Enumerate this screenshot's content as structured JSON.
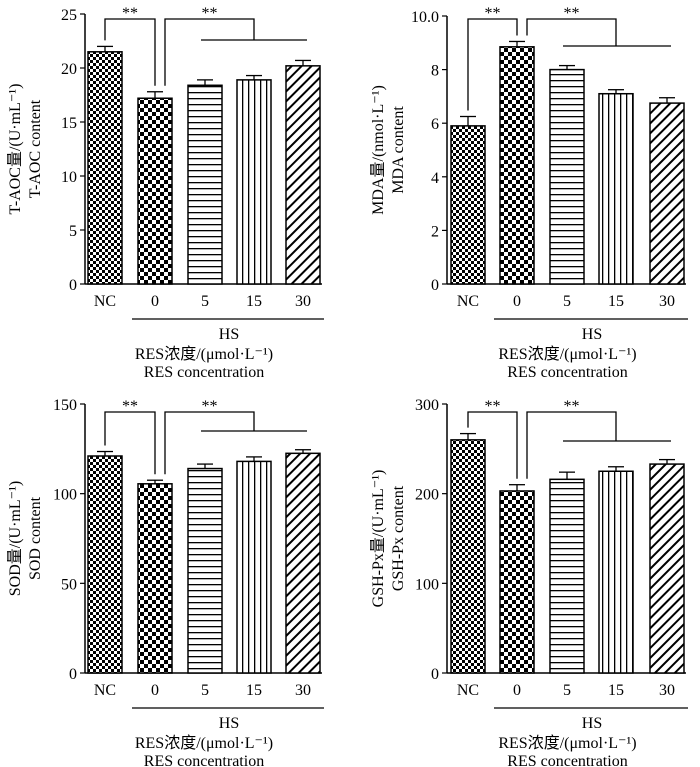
{
  "chart_data": [
    {
      "type": "bar",
      "panel": "top-left",
      "ylabel_line1": "T-AOC量/(U·mL⁻¹)",
      "ylabel_line2": "T-AOC content",
      "categories": [
        "NC",
        "0",
        "5",
        "15",
        "30"
      ],
      "values": [
        21.5,
        17.2,
        18.4,
        18.9,
        20.2
      ],
      "errors": [
        0.5,
        0.6,
        0.5,
        0.4,
        0.5
      ],
      "patterns": [
        "checker-small",
        "checker-large",
        "hlines",
        "vlines",
        "diag"
      ],
      "ylim": [
        0,
        25
      ],
      "yticks": [
        0,
        5,
        10,
        15,
        20,
        25
      ],
      "group_label": "HS",
      "xlabel_line1": "RES浓度/(μmol·L⁻¹)",
      "xlabel_line2": "RES concentration",
      "sig_left": "**",
      "sig_right": "**"
    },
    {
      "type": "bar",
      "panel": "top-right",
      "ylabel_line1": "MDA量/(nmol·L⁻¹)",
      "ylabel_line2": "MDA content",
      "categories": [
        "NC",
        "0",
        "5",
        "15",
        "30"
      ],
      "values": [
        5.9,
        8.85,
        8.0,
        7.1,
        6.75
      ],
      "errors": [
        0.35,
        0.2,
        0.15,
        0.15,
        0.2
      ],
      "patterns": [
        "checker-small",
        "checker-large",
        "hlines",
        "vlines",
        "diag"
      ],
      "ylim": [
        0,
        10
      ],
      "yticks": [
        0,
        2,
        4,
        6,
        8,
        10
      ],
      "ytick_labels": [
        "0",
        "2",
        "4",
        "6",
        "8",
        "10.0"
      ],
      "group_label": "HS",
      "xlabel_line1": "RES浓度/(μmol·L⁻¹)",
      "xlabel_line2": "RES concentration",
      "sig_left": "**",
      "sig_right": "**"
    },
    {
      "type": "bar",
      "panel": "bottom-left",
      "ylabel_line1": "SOD量/(U·mL⁻¹)",
      "ylabel_line2": "SOD content",
      "categories": [
        "NC",
        "0",
        "5",
        "15",
        "30"
      ],
      "values": [
        121,
        105.5,
        114,
        118,
        122.5
      ],
      "errors": [
        2.5,
        2,
        2.5,
        2.5,
        2
      ],
      "patterns": [
        "checker-small",
        "checker-large",
        "hlines",
        "vlines",
        "diag"
      ],
      "ylim": [
        0,
        150
      ],
      "yticks": [
        0,
        50,
        100,
        150
      ],
      "group_label": "HS",
      "xlabel_line1": "RES浓度/(μmol·L⁻¹)",
      "xlabel_line2": "RES concentration",
      "sig_left": "**",
      "sig_right": "**"
    },
    {
      "type": "bar",
      "panel": "bottom-right",
      "ylabel_line1": "GSH-Px量/(U·mL⁻¹)",
      "ylabel_line2": "GSH-Px content",
      "categories": [
        "NC",
        "0",
        "5",
        "15",
        "30"
      ],
      "values": [
        260,
        203,
        216,
        225,
        233
      ],
      "errors": [
        7,
        7,
        8,
        5,
        5
      ],
      "patterns": [
        "checker-small",
        "checker-large",
        "hlines",
        "vlines",
        "diag"
      ],
      "ylim": [
        0,
        300
      ],
      "yticks": [
        0,
        100,
        200,
        300
      ],
      "group_label": "HS",
      "xlabel_line1": "RES浓度/(μmol·L⁻¹)",
      "xlabel_line2": "RES concentration",
      "sig_left": "**",
      "sig_right": "**"
    }
  ]
}
